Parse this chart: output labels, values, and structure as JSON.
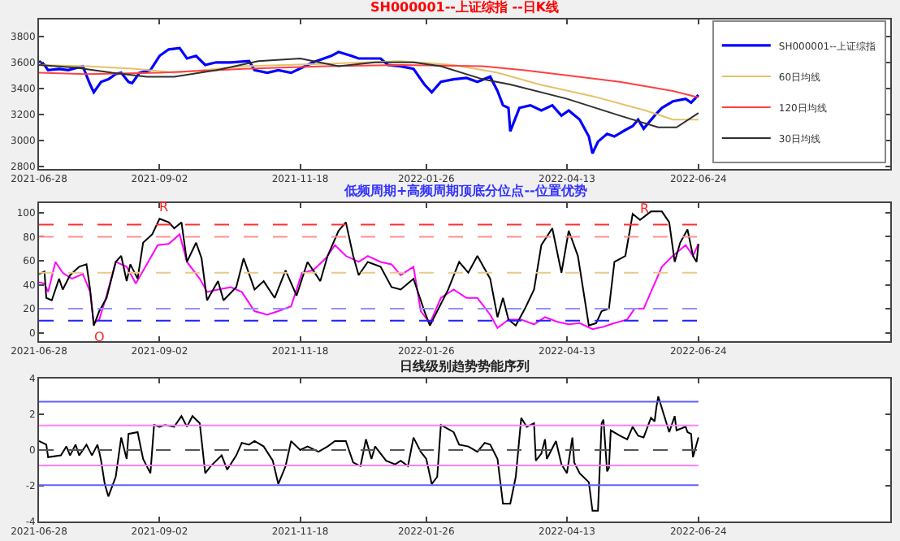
{
  "chart_data": [
    {
      "type": "line",
      "title": "SH000001--上证综指 --日K线",
      "legend": "top right",
      "xlim": [
        "2021-06-28",
        "2022-10-07"
      ],
      "xticks": [
        "2021-06-28",
        "2021-09-02",
        "2021-11-18",
        "2022-01-26",
        "2022-04-13",
        "2022-06-24"
      ],
      "ylim": [
        2780,
        3930
      ],
      "yticks": [
        2800,
        3000,
        3200,
        3400,
        3600,
        3800
      ],
      "series": [
        {
          "name": "SH000001--上证综指",
          "color": "#0000ff",
          "x": [
            "2021-06-28",
            "2021-07-01",
            "2021-07-03",
            "2021-07-09",
            "2021-07-14",
            "2021-07-19",
            "2021-07-22",
            "2021-07-26",
            "2021-07-28",
            "2021-08-01",
            "2021-08-05",
            "2021-08-09",
            "2021-08-12",
            "2021-08-16",
            "2021-08-18",
            "2021-08-22",
            "2021-08-28",
            "2021-09-02",
            "2021-09-07",
            "2021-09-13",
            "2021-09-17",
            "2021-09-22",
            "2021-09-27",
            "2021-10-03",
            "2021-10-11",
            "2021-10-21",
            "2021-10-24",
            "2021-10-31",
            "2021-11-06",
            "2021-11-13",
            "2021-11-19",
            "2021-11-25",
            "2021-12-05",
            "2021-12-09",
            "2021-12-16",
            "2021-12-20",
            "2021-12-25",
            "2022-01-01",
            "2022-01-05",
            "2022-01-12",
            "2022-01-19",
            "2022-01-25",
            "2022-01-29",
            "2022-02-03",
            "2022-02-10",
            "2022-02-17",
            "2022-02-23",
            "2022-03-02",
            "2022-03-06",
            "2022-03-09",
            "2022-03-12",
            "2022-03-13",
            "2022-03-18",
            "2022-03-24",
            "2022-03-30",
            "2022-04-05",
            "2022-04-10",
            "2022-04-14",
            "2022-04-20",
            "2022-04-25",
            "2022-04-27",
            "2022-04-30",
            "2022-05-05",
            "2022-05-09",
            "2022-05-15",
            "2022-05-19",
            "2022-05-22",
            "2022-05-25",
            "2022-05-31",
            "2022-06-04",
            "2022-06-10",
            "2022-06-17",
            "2022-06-20",
            "2022-06-24"
          ],
          "values": [
            3610,
            3580,
            3540,
            3550,
            3540,
            3560,
            3570,
            3430,
            3370,
            3450,
            3470,
            3510,
            3520,
            3450,
            3440,
            3520,
            3540,
            3650,
            3700,
            3710,
            3630,
            3650,
            3580,
            3600,
            3600,
            3610,
            3540,
            3520,
            3540,
            3520,
            3560,
            3600,
            3650,
            3680,
            3650,
            3630,
            3630,
            3630,
            3580,
            3570,
            3550,
            3430,
            3370,
            3450,
            3470,
            3480,
            3450,
            3490,
            3380,
            3270,
            3250,
            3070,
            3250,
            3270,
            3230,
            3270,
            3190,
            3230,
            3160,
            3030,
            2900,
            2990,
            3050,
            3030,
            3080,
            3110,
            3160,
            3090,
            3190,
            3250,
            3300,
            3320,
            3290,
            3350
          ]
        },
        {
          "name": "60日均线",
          "color": "#e6c06a",
          "x": [
            "2021-06-28",
            "2021-07-24",
            "2021-08-20",
            "2021-09-10",
            "2021-10-18",
            "2021-12-02",
            "2022-01-12",
            "2022-02-10",
            "2022-03-06",
            "2022-03-29",
            "2022-04-27",
            "2022-05-26",
            "2022-06-10",
            "2022-06-24"
          ],
          "values": [
            3580,
            3570,
            3550,
            3520,
            3570,
            3590,
            3610,
            3580,
            3520,
            3430,
            3340,
            3230,
            3160,
            3160
          ]
        },
        {
          "name": "120日均线",
          "color": "#ff4040",
          "x": [
            "2021-06-28",
            "2021-07-24",
            "2021-09-02",
            "2021-10-18",
            "2021-12-02",
            "2022-01-12",
            "2022-02-26",
            "2022-03-21",
            "2022-04-13",
            "2022-05-12",
            "2022-06-10",
            "2022-06-24"
          ],
          "values": [
            3520,
            3510,
            3520,
            3550,
            3570,
            3580,
            3570,
            3540,
            3500,
            3450,
            3380,
            3330
          ]
        },
        {
          "name": "30日均线",
          "color": "#303030",
          "x": [
            "2021-06-28",
            "2021-07-18",
            "2021-08-07",
            "2021-08-26",
            "2021-09-10",
            "2021-10-03",
            "2021-10-26",
            "2021-11-18",
            "2021-12-09",
            "2021-12-29",
            "2022-01-19",
            "2022-02-03",
            "2022-02-26",
            "2022-03-13",
            "2022-04-13",
            "2022-05-12",
            "2022-06-02",
            "2022-06-12",
            "2022-06-24"
          ],
          "values": [
            3580,
            3560,
            3520,
            3490,
            3490,
            3540,
            3610,
            3630,
            3570,
            3600,
            3600,
            3570,
            3470,
            3430,
            3320,
            3190,
            3100,
            3100,
            3210
          ]
        }
      ]
    },
    {
      "type": "line",
      "title": "低频周期+高频周期顶底分位点--位置优势",
      "xlim": [
        "2021-06-28",
        "2022-10-07"
      ],
      "xticks": [
        "2021-06-28",
        "2021-09-02",
        "2021-11-18",
        "2022-01-26",
        "2022-04-13",
        "2022-06-24"
      ],
      "ylim": [
        -7,
        108
      ],
      "yticks": [
        0,
        20,
        40,
        60,
        80,
        100
      ],
      "ref_lines": [
        {
          "axis": "y",
          "value": 90,
          "color": "#ff3030",
          "line_style": "dashed"
        },
        {
          "axis": "y",
          "value": 80,
          "color": "#ff9090",
          "line_style": "dashed"
        },
        {
          "axis": "y",
          "value": 50,
          "color": "#e8c98a",
          "line_style": "dashed"
        },
        {
          "axis": "y",
          "value": 20,
          "color": "#9090ff",
          "line_style": "dashed"
        },
        {
          "axis": "y",
          "value": 10,
          "color": "#2020ff",
          "line_style": "dashed"
        }
      ],
      "annotations": [
        {
          "text": "R",
          "x": "2021-09-02",
          "y": 95
        },
        {
          "text": "O",
          "x": "2021-07-28",
          "y": 6
        },
        {
          "text": "R",
          "x": "2022-05-23",
          "y": 94
        }
      ],
      "series": [
        {
          "color": "#ff00ff",
          "x": [
            "2021-06-28",
            "2021-07-01",
            "2021-07-03",
            "2021-07-07",
            "2021-07-11",
            "2021-07-16",
            "2021-07-22",
            "2021-07-26",
            "2021-07-28",
            "2021-07-31",
            "2021-08-04",
            "2021-08-09",
            "2021-08-15",
            "2021-08-20",
            "2021-08-26",
            "2021-09-01",
            "2021-09-07",
            "2021-09-13",
            "2021-09-17",
            "2021-09-24",
            "2021-09-28",
            "2021-10-04",
            "2021-10-11",
            "2021-10-17",
            "2021-10-24",
            "2021-10-31",
            "2021-11-06",
            "2021-11-13",
            "2021-11-19",
            "2021-11-25",
            "2021-12-02",
            "2021-12-07",
            "2021-12-13",
            "2021-12-20",
            "2021-12-25",
            "2022-01-01",
            "2022-01-07",
            "2022-01-12",
            "2022-01-19",
            "2022-01-23",
            "2022-01-28",
            "2022-02-03",
            "2022-02-10",
            "2022-02-17",
            "2022-02-23",
            "2022-03-02",
            "2022-03-06",
            "2022-03-12",
            "2022-03-19",
            "2022-03-26",
            "2022-04-01",
            "2022-04-08",
            "2022-04-14",
            "2022-04-20",
            "2022-04-27",
            "2022-05-03",
            "2022-05-09",
            "2022-05-16",
            "2022-05-20",
            "2022-05-25",
            "2022-05-31",
            "2022-06-04",
            "2022-06-10",
            "2022-06-17",
            "2022-06-21",
            "2022-06-24"
          ],
          "values": [
            42,
            41,
            34,
            59,
            50,
            45,
            49,
            34,
            8,
            11,
            31,
            59,
            55,
            41,
            57,
            73,
            74,
            82,
            59,
            45,
            34,
            36,
            38,
            34,
            18,
            15,
            18,
            22,
            50,
            52,
            62,
            73,
            64,
            59,
            64,
            59,
            57,
            48,
            55,
            18,
            8,
            29,
            36,
            29,
            29,
            15,
            4,
            11,
            11,
            7,
            13,
            9,
            7,
            8,
            3,
            5,
            8,
            11,
            20,
            20,
            41,
            55,
            64,
            73,
            64,
            74
          ]
        },
        {
          "color": "#000000",
          "x": [
            "2021-06-28",
            "2021-07-01",
            "2021-07-02",
            "2021-07-05",
            "2021-07-09",
            "2021-07-11",
            "2021-07-15",
            "2021-07-20",
            "2021-07-24",
            "2021-07-26",
            "2021-07-28",
            "2021-07-31",
            "2021-08-04",
            "2021-08-09",
            "2021-08-12",
            "2021-08-15",
            "2021-08-17",
            "2021-08-21",
            "2021-08-24",
            "2021-08-29",
            "2021-09-02",
            "2021-09-07",
            "2021-09-10",
            "2021-09-14",
            "2021-09-17",
            "2021-09-22",
            "2021-09-25",
            "2021-09-28",
            "2021-10-04",
            "2021-10-07",
            "2021-10-14",
            "2021-10-18",
            "2021-10-24",
            "2021-10-29",
            "2021-11-04",
            "2021-11-10",
            "2021-11-16",
            "2021-11-22",
            "2021-11-29",
            "2021-12-03",
            "2021-12-09",
            "2021-12-13",
            "2021-12-17",
            "2021-12-20",
            "2021-12-25",
            "2022-01-01",
            "2022-01-07",
            "2022-01-12",
            "2022-01-19",
            "2022-01-25",
            "2022-01-28",
            "2022-01-31",
            "2022-02-07",
            "2022-02-13",
            "2022-02-18",
            "2022-02-23",
            "2022-03-02",
            "2022-03-06",
            "2022-03-09",
            "2022-03-12",
            "2022-03-16",
            "2022-03-21",
            "2022-03-26",
            "2022-03-30",
            "2022-04-05",
            "2022-04-10",
            "2022-04-14",
            "2022-04-19",
            "2022-04-25",
            "2022-04-29",
            "2022-05-02",
            "2022-05-06",
            "2022-05-09",
            "2022-05-15",
            "2022-05-19",
            "2022-05-23",
            "2022-05-29",
            "2022-06-04",
            "2022-06-08",
            "2022-06-11",
            "2022-06-14",
            "2022-06-18",
            "2022-06-21",
            "2022-06-23",
            "2022-06-24"
          ],
          "values": [
            49,
            51,
            29,
            27,
            45,
            36,
            48,
            55,
            57,
            36,
            6,
            18,
            29,
            59,
            64,
            43,
            57,
            45,
            75,
            82,
            95,
            92,
            87,
            92,
            59,
            75,
            62,
            27,
            43,
            27,
            38,
            62,
            36,
            43,
            29,
            52,
            31,
            59,
            43,
            64,
            85,
            92,
            64,
            48,
            59,
            55,
            38,
            36,
            45,
            18,
            6,
            15,
            36,
            59,
            50,
            64,
            45,
            13,
            29,
            11,
            6,
            20,
            36,
            73,
            87,
            50,
            85,
            64,
            6,
            8,
            18,
            20,
            59,
            64,
            99,
            94,
            101,
            101,
            92,
            59,
            75,
            86,
            64,
            59,
            74
          ]
        }
      ]
    },
    {
      "type": "line",
      "title": "日线级别趋势势能序列",
      "xlim": [
        "2021-06-28",
        "2022-10-07"
      ],
      "xticks": [
        "2021-06-28",
        "2021-09-02",
        "2021-11-18",
        "2022-01-26",
        "2022-04-13",
        "2022-06-24"
      ],
      "ylim": [
        -4,
        4
      ],
      "yticks": [
        -4,
        -2,
        0,
        2,
        4
      ],
      "ref_lines": [
        {
          "axis": "y",
          "value": 2.7,
          "color": "#6060ff",
          "line_style": "solid"
        },
        {
          "axis": "y",
          "value": 1.37,
          "color": "#ff80ff",
          "line_style": "solid"
        },
        {
          "axis": "y",
          "value": 0,
          "color": "#555555",
          "line_style": "dashed"
        },
        {
          "axis": "y",
          "value": -0.86,
          "color": "#ff80ff",
          "line_style": "solid"
        },
        {
          "axis": "y",
          "value": -1.97,
          "color": "#6060ff",
          "line_style": "solid"
        }
      ],
      "series": [
        {
          "color": "#000000",
          "x": [
            "2021-06-28",
            "2021-07-02",
            "2021-07-03",
            "2021-07-10",
            "2021-07-13",
            "2021-07-15",
            "2021-07-18",
            "2021-07-20",
            "2021-07-24",
            "2021-07-27",
            "2021-07-30",
            "2021-07-31",
            "2021-08-01",
            "2021-08-03",
            "2021-08-05",
            "2021-08-09",
            "2021-08-12",
            "2021-08-15",
            "2021-08-16",
            "2021-08-21",
            "2021-08-24",
            "2021-08-28",
            "2021-08-30",
            "2021-09-02",
            "2021-09-05",
            "2021-09-10",
            "2021-09-14",
            "2021-09-17",
            "2021-09-20",
            "2021-09-24",
            "2021-09-27",
            "2021-09-30",
            "2021-10-06",
            "2021-10-09",
            "2021-10-14",
            "2021-10-17",
            "2021-10-21",
            "2021-10-24",
            "2021-10-29",
            "2021-11-03",
            "2021-11-06",
            "2021-11-10",
            "2021-11-13",
            "2021-11-18",
            "2021-11-22",
            "2021-11-28",
            "2021-12-03",
            "2021-12-07",
            "2021-12-13",
            "2021-12-17",
            "2021-12-21",
            "2021-12-24",
            "2021-12-27",
            "2021-12-29",
            "2022-01-04",
            "2022-01-09",
            "2022-01-12",
            "2022-01-16",
            "2022-01-19",
            "2022-01-23",
            "2022-01-26",
            "2022-01-29",
            "2022-02-01",
            "2022-02-03",
            "2022-02-10",
            "2022-02-13",
            "2022-02-18",
            "2022-02-23",
            "2022-02-27",
            "2022-03-02",
            "2022-03-06",
            "2022-03-09",
            "2022-03-13",
            "2022-03-16",
            "2022-03-19",
            "2022-03-22",
            "2022-03-26",
            "2022-03-27",
            "2022-03-30",
            "2022-04-01",
            "2022-04-02",
            "2022-04-07",
            "2022-04-10",
            "2022-04-13",
            "2022-04-16",
            "2022-04-17",
            "2022-04-20",
            "2022-04-25",
            "2022-04-27",
            "2022-04-30",
            "2022-05-02",
            "2022-05-03",
            "2022-05-05",
            "2022-05-06",
            "2022-05-07",
            "2022-05-12",
            "2022-05-16",
            "2022-05-19",
            "2022-05-22",
            "2022-05-25",
            "2022-05-29",
            "2022-05-31",
            "2022-06-01",
            "2022-06-02",
            "2022-06-05",
            "2022-06-08",
            "2022-06-11",
            "2022-06-12",
            "2022-06-17",
            "2022-06-18",
            "2022-06-20",
            "2022-06-21",
            "2022-06-24"
          ],
          "values": [
            0.5,
            0.3,
            -0.4,
            -0.3,
            0.2,
            -0.3,
            0.3,
            -0.3,
            0.3,
            -0.3,
            0.3,
            -0.1,
            -0.6,
            -1.9,
            -2.6,
            -1.5,
            0.7,
            -0.5,
            0.9,
            1.0,
            -0.5,
            -1.3,
            1.4,
            1.3,
            1.4,
            1.3,
            1.9,
            1.3,
            1.9,
            1.5,
            -1.3,
            -0.9,
            -0.3,
            -1.1,
            -0.3,
            0.4,
            0.3,
            0.5,
            0.2,
            -0.6,
            -1.9,
            -0.9,
            0.5,
            0.0,
            0.2,
            -0.1,
            0.2,
            0.5,
            0.5,
            -0.7,
            -0.9,
            0.6,
            -0.5,
            0.2,
            -0.6,
            -0.8,
            -0.6,
            -0.9,
            0.7,
            -0.1,
            -0.5,
            -1.9,
            -1.5,
            1.4,
            1.0,
            0.3,
            0.2,
            -0.1,
            0.4,
            0.3,
            -0.5,
            -3.0,
            -3.0,
            -1.5,
            1.8,
            1.3,
            1.5,
            -0.6,
            -0.2,
            0.6,
            -0.5,
            0.5,
            -0.8,
            -1.3,
            0.7,
            -0.7,
            -1.3,
            -1.8,
            -3.4,
            -3.4,
            1.5,
            1.7,
            -1.2,
            -1.0,
            1.1,
            0.8,
            0.6,
            1.3,
            0.8,
            0.7,
            1.8,
            1.6,
            2.4,
            3.0,
            2.0,
            1.0,
            1.9,
            1.1,
            1.3,
            1.0,
            0.9,
            -0.4,
            0.7
          ]
        }
      ]
    }
  ]
}
